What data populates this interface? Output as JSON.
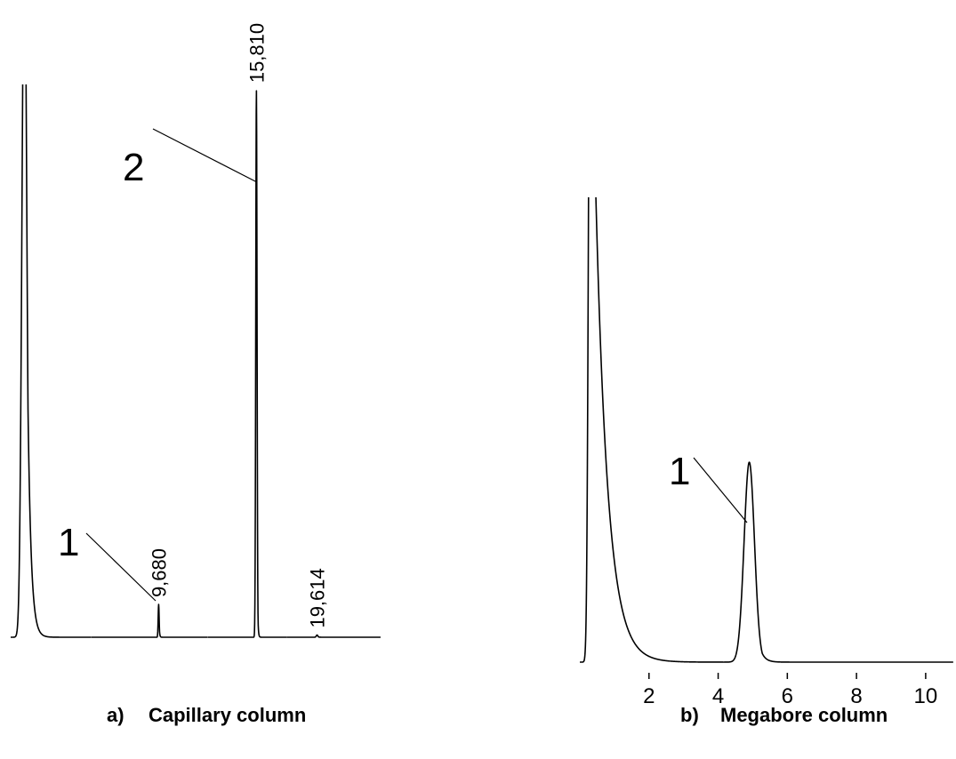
{
  "chart_data": [
    {
      "type": "chromatogram",
      "panel": "a)",
      "title": "Capillary column",
      "x": [
        1.26,
        9.68,
        15.81,
        19.614
      ],
      "x_labels": [
        null,
        "9,680",
        "15,810",
        "19,614"
      ],
      "peak_labels": [
        null,
        "1",
        "2",
        null
      ],
      "values": [
        130,
        6,
        100,
        0.4
      ],
      "widths": [
        0.15,
        0.03,
        0.04,
        0.05
      ],
      "tails": [
        0.2,
        0.03,
        0.03,
        0.05
      ],
      "xlim": [
        0.4,
        23.6
      ],
      "ylim": [
        0,
        101
      ],
      "color": "#000000"
    },
    {
      "type": "chromatogram",
      "panel": "b)",
      "title": "Megabore column",
      "x": [
        0.3,
        4.9
      ],
      "x_labels": [
        null,
        null
      ],
      "peak_labels": [
        null,
        "1"
      ],
      "values": [
        160,
        43
      ],
      "widths": [
        0.05,
        0.15
      ],
      "tails": [
        0.35,
        0.12
      ],
      "xlim": [
        0,
        10.8
      ],
      "ylim": [
        0,
        100
      ],
      "xticks": [
        2,
        4,
        6,
        8,
        10
      ],
      "color": "#000000"
    }
  ]
}
